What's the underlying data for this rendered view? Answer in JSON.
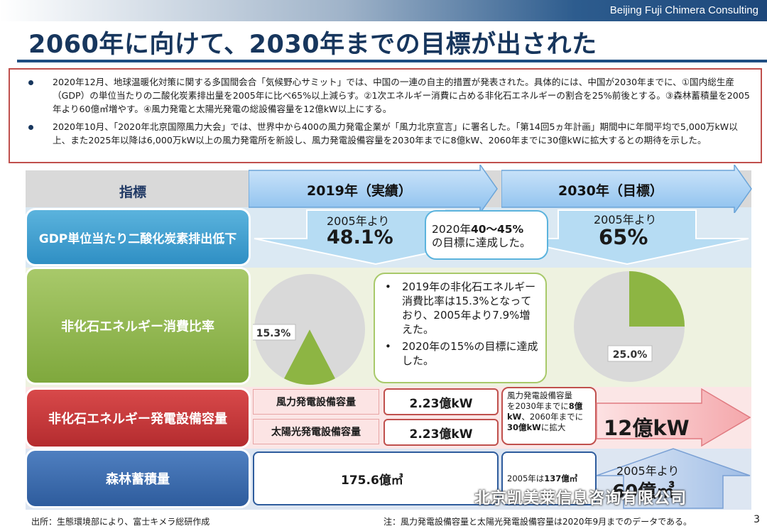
{
  "header": {
    "company": "Beijing Fuji Chimera Consulting",
    "title": "2060年に向けて、2030年までの目標が出された"
  },
  "summary": {
    "bullets": [
      "2020年12月、地球温暖化対策に関する多国間会合「気候野心サミット」では、中国の一連の自主的措置が発表された。具体的には、中国が2030年までに、①国内総生産（GDP）の単位当たりの二酸化炭素排出量を2005年に比べ65%以上減らす。②1次エネルギー消費に占める非化石エネルギーの割合を25%前後とする。③森林蓄積量を2005年より60億㎥増やす。④風力発電と太陽光発電の総設備容量を12億kW以上にする。",
      "2020年10月、「2020年北京国際風力大会」では、世界中から400の風力発電企業が「風力北京宣言」に署名した。「第14回5ヵ年計画」期間中に年間平均で5,000万kW以上、また2025年以降は6,000万kW以上の風力発電所を新設し、風力発電設備容量を2030年までに8億kW、2060年までに30億kWに拡大するとの期待を示した。"
    ]
  },
  "table": {
    "header_indicator": "指標",
    "header_2019": "2019年（実績）",
    "header_2030": "2030年（目標）",
    "rows": {
      "gdp": {
        "label": "GDP単位当たり二酸化炭素排出低下",
        "y2019_prefix": "2005年より",
        "y2019_value": "48.1%",
        "callout_line1_a": "2020年",
        "callout_line1_b": "40～45%",
        "callout_line2": "の目標に達成した。",
        "y2030_prefix": "2005年より",
        "y2030_value": "65%"
      },
      "nonfossil": {
        "label": "非化石エネルギー消費比率",
        "callout_bullets": [
          "2019年の非化石エネルギー消費比率は15.3%となっており、2005年より7.9%増えた。",
          "2020年の15%の目標に達成した。"
        ]
      },
      "capacity": {
        "label": "非化石エネルギー発電設備容量",
        "wind_label": "風力発電設備容量",
        "wind_value": "2.23億kW",
        "solar_label": "太陽光発電設備容量",
        "solar_value": "2.23億kW",
        "note_1": "風力発電設備容量",
        "note_2": "を2030年までに",
        "note_3": "8億",
        "note_4": "kW",
        "note_5": "、2060年までに",
        "note_6": "30億kW",
        "note_7": "に拡大",
        "target": "12億kW"
      },
      "forest": {
        "label": "森林蓄積量",
        "value_2019": "175.6億㎥",
        "note_2005_a": "2005年は",
        "note_2005_b": "137億㎥",
        "target_prefix": "2005年より",
        "target_value": "60億㎥"
      }
    }
  },
  "chart_data": [
    {
      "type": "pie",
      "title": "",
      "slices": [
        {
          "label": "15.3%",
          "value": 15.3
        },
        {
          "label": "",
          "value": 84.7
        }
      ],
      "colors": [
        "#8db543",
        "#d9d9d9"
      ]
    },
    {
      "type": "pie",
      "title": "",
      "slices": [
        {
          "label": "25.0%",
          "value": 25.0
        },
        {
          "label": "",
          "value": 75.0
        }
      ],
      "colors": [
        "#8db543",
        "#d9d9d9"
      ]
    }
  ],
  "footer": {
    "source": "出所：生態環境部により、富士キメラ総研作成",
    "note": "注：風力発電設備容量と太陽光発電設備容量は2020年9月までのデータである。",
    "page": "3",
    "watermark": "北京凯美莱信息咨询有限公司"
  }
}
